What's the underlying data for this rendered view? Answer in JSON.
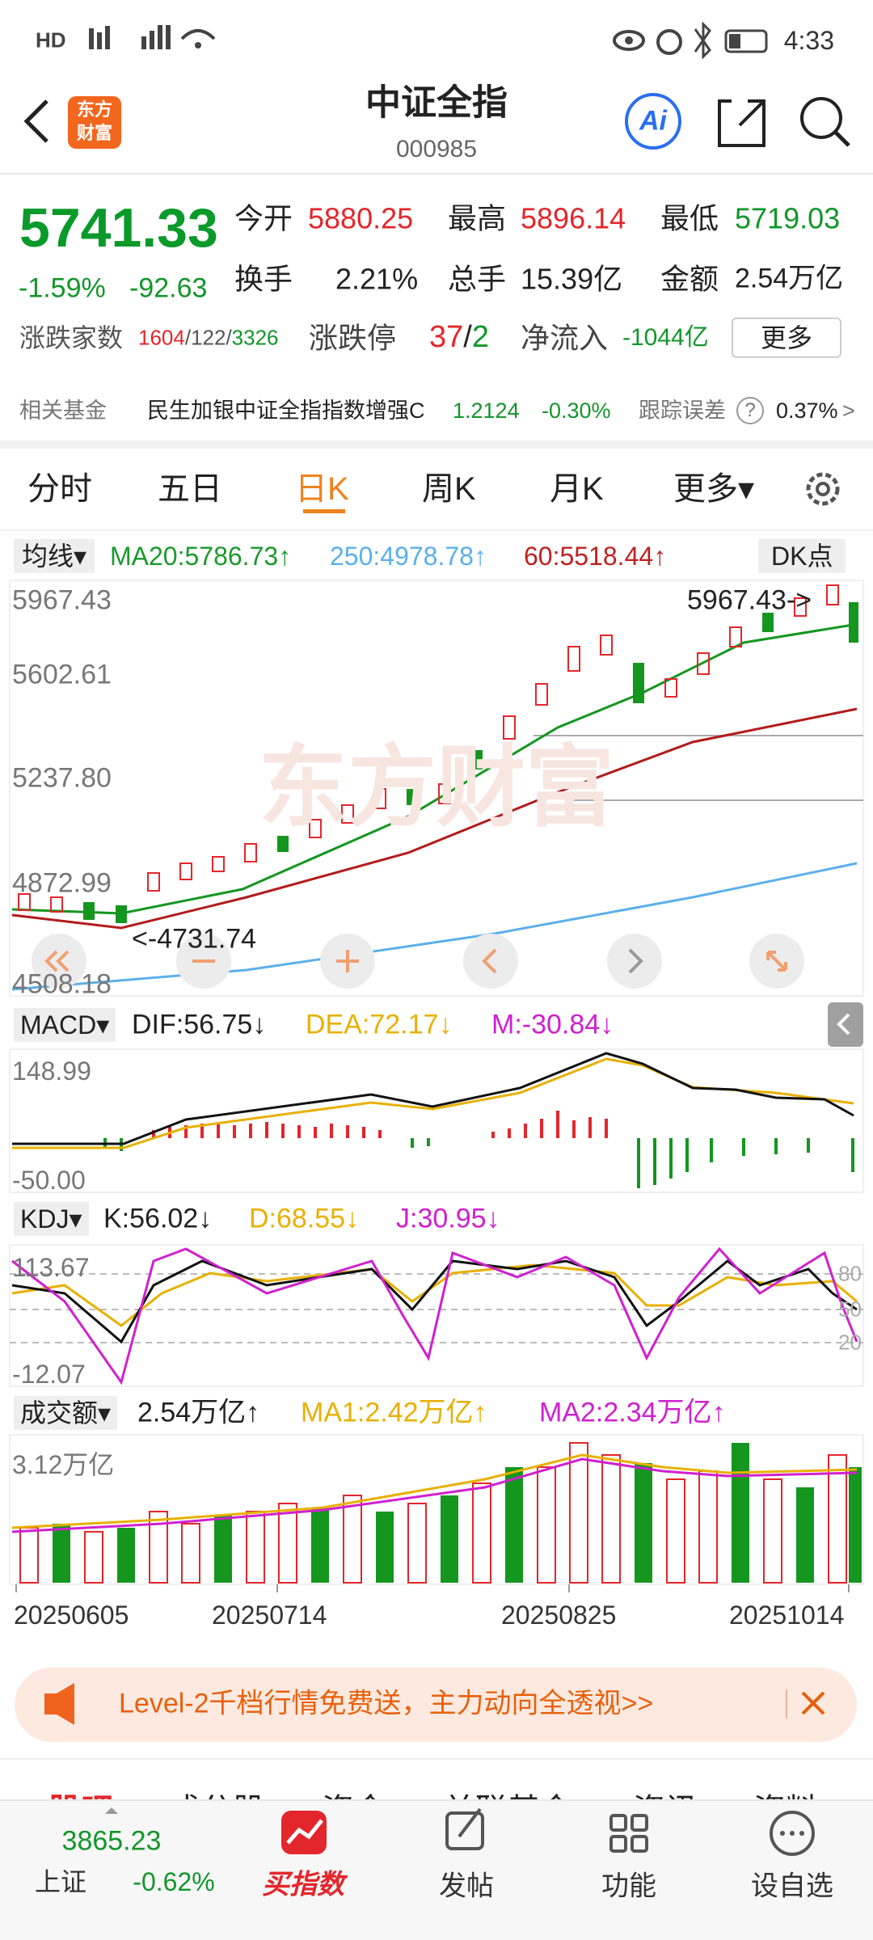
{
  "status_bar": {
    "network": "HD",
    "time": "4:33"
  },
  "header": {
    "logo": [
      "东方",
      "财富"
    ],
    "title": "中证全指",
    "code": "000985",
    "ai_button": "Ai"
  },
  "quote": {
    "price": "5741.33",
    "change_percent": "-1.59%",
    "change": "-92.63",
    "stats": [
      {
        "label": "今开",
        "value": "5880.25"
      },
      {
        "label": "最高",
        "value": "5896.14"
      },
      {
        "label": "最低",
        "value": "5719.03"
      },
      {
        "label": "换手",
        "value": "2.21%"
      },
      {
        "label": "总手",
        "value": "15.39亿"
      },
      {
        "label": "金额",
        "value": "2.54万亿"
      }
    ],
    "breadth": {
      "label": "涨跌家数",
      "up": "1604",
      "flat": "/122/",
      "down": "3326"
    },
    "limit": {
      "label": "涨跌停",
      "up": "37",
      "separator": "/",
      "down": "2"
    },
    "net_inflow": {
      "label": "净流入",
      "value": "-1044亿"
    },
    "more_button": "更多"
  },
  "related_fund": {
    "label": "相关基金",
    "name": "民生加银中证全指指数增强C",
    "nav": "1.2124",
    "change": "-0.30%",
    "tracking_label": "跟踪误差",
    "help": "?",
    "tracking_error": "0.37%",
    "arrow": ">"
  },
  "tabs": [
    "分时",
    "五日",
    "日K",
    "周K",
    "月K",
    "更多▾"
  ],
  "kline": {
    "indicator_select": "均线▾",
    "legend": [
      "MA20:5786.73↑",
      "250:4978.78↑",
      "60:5518.44↑"
    ],
    "dk_button": "DK点",
    "axis_labels": [
      "5967.43",
      "5602.61",
      "5237.80",
      "4872.99",
      "4508.18"
    ],
    "high_marker": "5967.43->",
    "low_marker": "<-4731.74",
    "watermark": "东方财富"
  },
  "macd": {
    "indicator_select": "MACD▾",
    "legend": [
      "DIF:56.75↓",
      "DEA:72.17↓",
      "M:-30.84↓"
    ],
    "axis_labels": [
      "148.99",
      "-50.00"
    ]
  },
  "kdj": {
    "indicator_select": "KDJ▾",
    "legend": [
      "K:56.02↓",
      "D:68.55↓",
      "J:30.95↓"
    ],
    "axis_labels": [
      "113.67",
      "-12.07"
    ],
    "levels": [
      "80",
      "50",
      "20"
    ]
  },
  "volume": {
    "indicator_select": "成交额▾",
    "legend": [
      "2.54万亿↑",
      "MA1:2.42万亿↑",
      "MA2:2.34万亿↑"
    ],
    "axis_label": "3.12万亿"
  },
  "dates": [
    "20250605",
    "20250714",
    "20250825",
    "20251014"
  ],
  "banner": {
    "text": "Level-2千档行情免费送，主力动向全透视>>"
  },
  "section_tabs": [
    "股吧",
    "成分股",
    "资金",
    "关联基金",
    "资讯",
    "资料"
  ],
  "bottom_nav": {
    "index_value": "3865.23",
    "index_name": "上证",
    "index_change": "-0.62%",
    "items": [
      "买指数",
      "发帖",
      "功能",
      "设自选"
    ]
  }
}
